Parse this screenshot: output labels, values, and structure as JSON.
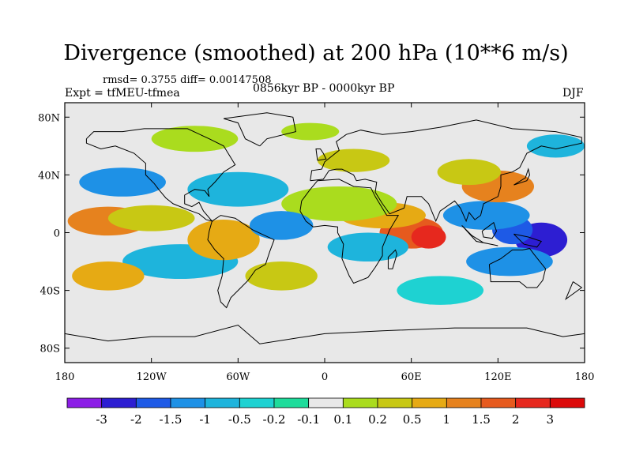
{
  "chart_data": {
    "type": "heatmap",
    "subtype": "filled-contour-map",
    "title": "Divergence (smoothed) at 200 hPa (10**6 m/s)",
    "stats_text": "rmsd= 0.3755 diff= 0.00147508",
    "experiment_text": "Expt = tfMEU-tfmea",
    "period_text": "0856kyr BP - 0000kyr BP",
    "season": "DJF",
    "x_axis": {
      "range": [
        -180,
        180
      ],
      "ticks": [
        -180,
        -120,
        -60,
        0,
        60,
        120,
        180
      ],
      "tick_labels": [
        "180",
        "120W",
        "60W",
        "0",
        "60E",
        "120E",
        "180"
      ]
    },
    "y_axis": {
      "range": [
        -90,
        90
      ],
      "ticks": [
        80,
        40,
        0,
        -40,
        -80
      ],
      "tick_labels": [
        "80N",
        "40N",
        "0",
        "40S",
        "80S"
      ]
    },
    "colorbar": {
      "levels": [
        "-3",
        "-2",
        "-1.5",
        "-1",
        "-0.5",
        "-0.2",
        "-0.1",
        "0.1",
        "0.2",
        "0.5",
        "1",
        "1.5",
        "2",
        "3"
      ],
      "colors": [
        "#8c1ee6",
        "#2d1ed2",
        "#1e5ae6",
        "#1e91e6",
        "#1eb4dc",
        "#1ed2d2",
        "#1edc9b",
        "#e8e8e8",
        "#aadc1e",
        "#c8c814",
        "#e6aa14",
        "#e6821e",
        "#e65a1e",
        "#e6281e",
        "#dc0a0a"
      ]
    },
    "blobs": [
      {
        "lon": 150,
        "lat": -5,
        "rx": 18,
        "ry": 12,
        "level": "-3",
        "color": "#2d1ed2"
      },
      {
        "lon": 130,
        "lat": 2,
        "rx": 14,
        "ry": 10,
        "level": "-1.5",
        "color": "#1e5ae6"
      },
      {
        "lon": 112,
        "lat": 12,
        "rx": 30,
        "ry": 10,
        "level": "-1",
        "color": "#1e91e6"
      },
      {
        "lon": 128,
        "lat": -20,
        "rx": 30,
        "ry": 10,
        "level": "-1",
        "color": "#1e91e6"
      },
      {
        "lon": 120,
        "lat": 32,
        "rx": 25,
        "ry": 11,
        "level": "1.5",
        "color": "#e6821e"
      },
      {
        "lon": 100,
        "lat": 42,
        "rx": 22,
        "ry": 9,
        "level": "0.5",
        "color": "#c8c814"
      },
      {
        "lon": 60,
        "lat": 0,
        "rx": 22,
        "ry": 11,
        "level": "2",
        "color": "#e65a1e"
      },
      {
        "lon": 72,
        "lat": -3,
        "rx": 12,
        "ry": 8,
        "level": "3",
        "color": "#e6281e"
      },
      {
        "lon": 40,
        "lat": 12,
        "rx": 30,
        "ry": 9,
        "level": "1",
        "color": "#e6aa14"
      },
      {
        "lon": 30,
        "lat": -10,
        "rx": 28,
        "ry": 10,
        "level": "-0.5",
        "color": "#1eb4dc"
      },
      {
        "lon": 10,
        "lat": 20,
        "rx": 40,
        "ry": 12,
        "level": "0.2",
        "color": "#aadc1e"
      },
      {
        "lon": -150,
        "lat": 8,
        "rx": 28,
        "ry": 10,
        "level": "1.5",
        "color": "#e6821e"
      },
      {
        "lon": -120,
        "lat": 10,
        "rx": 30,
        "ry": 9,
        "level": "0.5",
        "color": "#c8c814"
      },
      {
        "lon": -100,
        "lat": -20,
        "rx": 40,
        "ry": 12,
        "level": "-0.5",
        "color": "#1eb4dc"
      },
      {
        "lon": -140,
        "lat": 35,
        "rx": 30,
        "ry": 10,
        "level": "-1",
        "color": "#1e91e6"
      },
      {
        "lon": -60,
        "lat": 30,
        "rx": 35,
        "ry": 12,
        "level": "-0.5",
        "color": "#1eb4dc"
      },
      {
        "lon": -70,
        "lat": -5,
        "rx": 25,
        "ry": 14,
        "level": "1",
        "color": "#e6aa14"
      },
      {
        "lon": -30,
        "lat": 5,
        "rx": 22,
        "ry": 10,
        "level": "-1",
        "color": "#1e91e6"
      },
      {
        "lon": 20,
        "lat": 50,
        "rx": 25,
        "ry": 8,
        "level": "0.5",
        "color": "#c8c814"
      },
      {
        "lon": -90,
        "lat": 65,
        "rx": 30,
        "ry": 9,
        "level": "0.2",
        "color": "#aadc1e"
      },
      {
        "lon": -10,
        "lat": 70,
        "rx": 20,
        "ry": 6,
        "level": "0.2",
        "color": "#aadc1e"
      },
      {
        "lon": 160,
        "lat": 60,
        "rx": 20,
        "ry": 8,
        "level": "-0.5",
        "color": "#1eb4dc"
      },
      {
        "lon": -30,
        "lat": -30,
        "rx": 25,
        "ry": 10,
        "level": "0.5",
        "color": "#c8c814"
      },
      {
        "lon": 80,
        "lat": -40,
        "rx": 30,
        "ry": 10,
        "level": "-0.2",
        "color": "#1ed2d2"
      },
      {
        "lon": -150,
        "lat": -30,
        "rx": 25,
        "ry": 10,
        "level": "1",
        "color": "#e6aa14"
      }
    ]
  }
}
